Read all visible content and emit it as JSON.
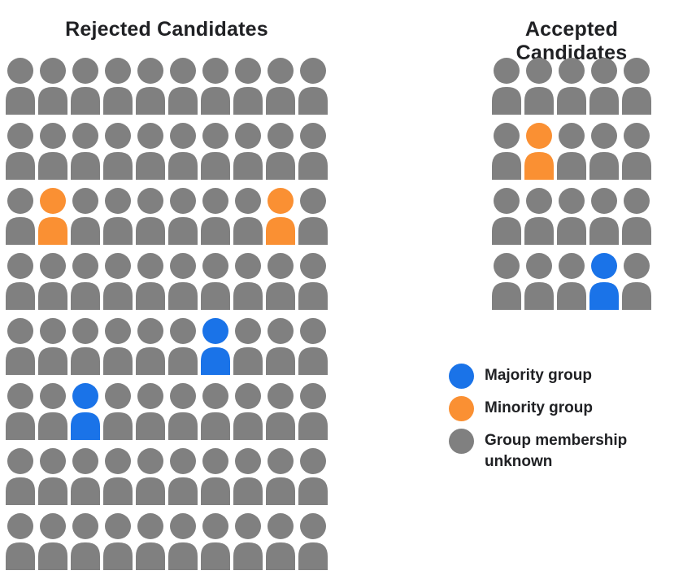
{
  "palette": {
    "majority_blue": "#1A73E8",
    "minority_orange": "#FA9033",
    "unknown_gray": "#808080",
    "text_dark": "#202124"
  },
  "rejected": {
    "title": "Rejected Candidates",
    "columns": 10,
    "grid": [
      [
        "unknown",
        "unknown",
        "unknown",
        "unknown",
        "unknown",
        "unknown",
        "unknown",
        "unknown",
        "unknown",
        "unknown"
      ],
      [
        "unknown",
        "unknown",
        "unknown",
        "unknown",
        "unknown",
        "unknown",
        "unknown",
        "unknown",
        "unknown",
        "unknown"
      ],
      [
        "unknown",
        "minority",
        "unknown",
        "unknown",
        "unknown",
        "unknown",
        "unknown",
        "unknown",
        "minority",
        "unknown"
      ],
      [
        "unknown",
        "unknown",
        "unknown",
        "unknown",
        "unknown",
        "unknown",
        "unknown",
        "unknown",
        "unknown",
        "unknown"
      ],
      [
        "unknown",
        "unknown",
        "unknown",
        "unknown",
        "unknown",
        "unknown",
        "majority",
        "unknown",
        "unknown",
        "unknown"
      ],
      [
        "unknown",
        "unknown",
        "majority",
        "unknown",
        "unknown",
        "unknown",
        "unknown",
        "unknown",
        "unknown",
        "unknown"
      ],
      [
        "unknown",
        "unknown",
        "unknown",
        "unknown",
        "unknown",
        "unknown",
        "unknown",
        "unknown",
        "unknown",
        "unknown"
      ],
      [
        "unknown",
        "unknown",
        "unknown",
        "unknown",
        "unknown",
        "unknown",
        "unknown",
        "unknown",
        "unknown",
        "unknown"
      ]
    ]
  },
  "accepted": {
    "title": "Accepted Candidates",
    "columns": 5,
    "grid": [
      [
        "unknown",
        "unknown",
        "unknown",
        "unknown",
        "unknown"
      ],
      [
        "unknown",
        "minority",
        "unknown",
        "unknown",
        "unknown"
      ],
      [
        "unknown",
        "unknown",
        "unknown",
        "unknown",
        "unknown"
      ],
      [
        "unknown",
        "unknown",
        "unknown",
        "majority",
        "unknown"
      ]
    ]
  },
  "legend": {
    "items": [
      {
        "key": "majority",
        "label": "Majority group"
      },
      {
        "key": "minority",
        "label": "Minority group"
      },
      {
        "key": "unknown",
        "label": "Group membership unknown"
      }
    ]
  },
  "chart_data": {
    "type": "pictograph",
    "title": "",
    "legend_position": "right-middle",
    "legend": [
      "Majority group",
      "Minority group",
      "Group membership unknown"
    ],
    "groups": [
      {
        "name": "Rejected Candidates",
        "rows": 8,
        "columns": 10,
        "total": 80,
        "counts": {
          "majority": 2,
          "minority": 2,
          "unknown": 76
        },
        "colored_positions": {
          "minority": [
            [
              3,
              2
            ],
            [
              3,
              9
            ]
          ],
          "majority": [
            [
              5,
              7
            ],
            [
              6,
              3
            ]
          ]
        }
      },
      {
        "name": "Accepted Candidates",
        "rows": 4,
        "columns": 5,
        "total": 20,
        "counts": {
          "majority": 1,
          "minority": 1,
          "unknown": 18
        },
        "colored_positions": {
          "minority": [
            [
              2,
              2
            ]
          ],
          "majority": [
            [
              4,
              4
            ]
          ]
        }
      }
    ]
  }
}
